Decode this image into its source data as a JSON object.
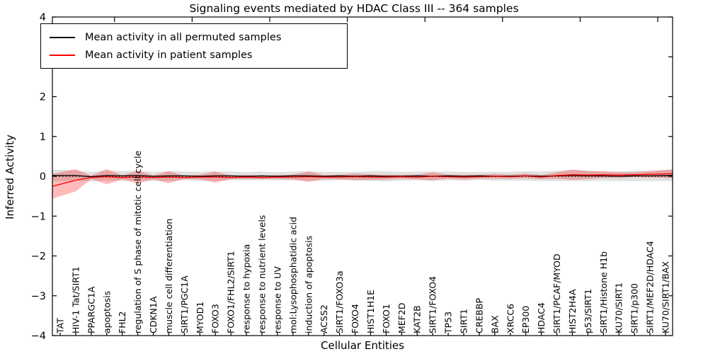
{
  "chart_data": {
    "type": "line",
    "title": "Signaling events mediated by HDAC Class III -- 364 samples",
    "xlabel": "Cellular Entities",
    "ylabel": "Inferred Activity",
    "ylim": [
      -4,
      4
    ],
    "yticks": [
      4,
      3,
      2,
      1,
      0,
      -1,
      -2,
      -3,
      -4
    ],
    "grid": false,
    "zero_line": "dotted",
    "legend_position": "upper left",
    "categories": [
      "TAT",
      "HIV-1 Tat/SIRT1",
      "PPARGC1A",
      "apoptosis",
      "FHL2",
      "regulation of S phase of mitotic cell cycle",
      "CDKN1A",
      "muscle cell differentiation",
      "SIRT1/PGC1A",
      "MYOD1",
      "FOXO3",
      "FOXO1/FHL2/SIRT1",
      "response to hypoxia",
      "response to nutrient levels",
      "response to UV",
      "mol:Lysophosphatidic acid",
      "induction of apoptosis",
      "ACSS2",
      "SIRT1/FOXO3a",
      "FOXO4",
      "HIST1H1E",
      "FOXO1",
      "MEF2D",
      "KAT2B",
      "SIRT1/FOXO4",
      "TP53",
      "SIRT1",
      "CREBBP",
      "BAX",
      "XRCC6",
      "EP300",
      "HDAC4",
      "SIRT1/PCAF/MYOD",
      "HIST2H4A",
      "p53/SIRT1",
      "SIRT1/Histone H1b",
      "KU70/SIRT1",
      "SIRT1/p300",
      "SIRT1/MEF2D/HDAC4",
      "KU70/SIRT1/BAX"
    ],
    "series": [
      {
        "name": "Mean activity in all permuted samples",
        "color": "#000000",
        "band_alpha": 0.12,
        "mean": [
          0.02,
          0.02,
          -0.01,
          0.02,
          0.01,
          0.02,
          0.0,
          0.01,
          0.01,
          0.0,
          0.01,
          0.01,
          0.0,
          0.01,
          0.0,
          0.01,
          0.01,
          0.0,
          0.01,
          0.0,
          0.01,
          0.0,
          0.0,
          0.01,
          0.0,
          0.01,
          0.0,
          0.01,
          0.0,
          0.0,
          0.01,
          0.0,
          0.01,
          0.02,
          0.01,
          0.01,
          0.0,
          0.01,
          0.01,
          0.02
        ],
        "std": [
          0.14,
          0.13,
          0.12,
          0.13,
          0.12,
          0.12,
          0.11,
          0.12,
          0.11,
          0.11,
          0.12,
          0.11,
          0.1,
          0.11,
          0.1,
          0.11,
          0.12,
          0.11,
          0.1,
          0.11,
          0.12,
          0.13,
          0.11,
          0.11,
          0.12,
          0.11,
          0.11,
          0.1,
          0.11,
          0.11,
          0.12,
          0.12,
          0.13,
          0.14,
          0.13,
          0.12,
          0.12,
          0.13,
          0.13,
          0.14
        ]
      },
      {
        "name": "Mean activity in patient samples",
        "color": "#ff0000",
        "band_alpha": 0.27,
        "mean": [
          -0.2,
          -0.1,
          -0.03,
          -0.01,
          -0.03,
          -0.02,
          -0.03,
          -0.02,
          -0.03,
          -0.02,
          -0.02,
          -0.03,
          -0.02,
          -0.03,
          -0.02,
          -0.02,
          -0.01,
          -0.02,
          -0.02,
          -0.01,
          -0.02,
          -0.02,
          -0.01,
          -0.02,
          0.0,
          -0.01,
          -0.02,
          -0.01,
          0.0,
          -0.01,
          0.01,
          -0.02,
          0.02,
          0.04,
          0.03,
          0.04,
          0.03,
          0.04,
          0.05,
          0.06
        ],
        "std": [
          0.3,
          0.28,
          0.04,
          0.19,
          0.05,
          0.16,
          0.05,
          0.15,
          0.04,
          0.06,
          0.14,
          0.04,
          0.05,
          0.04,
          0.05,
          0.06,
          0.13,
          0.05,
          0.06,
          0.08,
          0.07,
          0.06,
          0.05,
          0.06,
          0.1,
          0.05,
          0.06,
          0.05,
          0.06,
          0.05,
          0.06,
          0.05,
          0.08,
          0.13,
          0.1,
          0.08,
          0.07,
          0.06,
          0.08,
          0.1
        ]
      }
    ]
  }
}
